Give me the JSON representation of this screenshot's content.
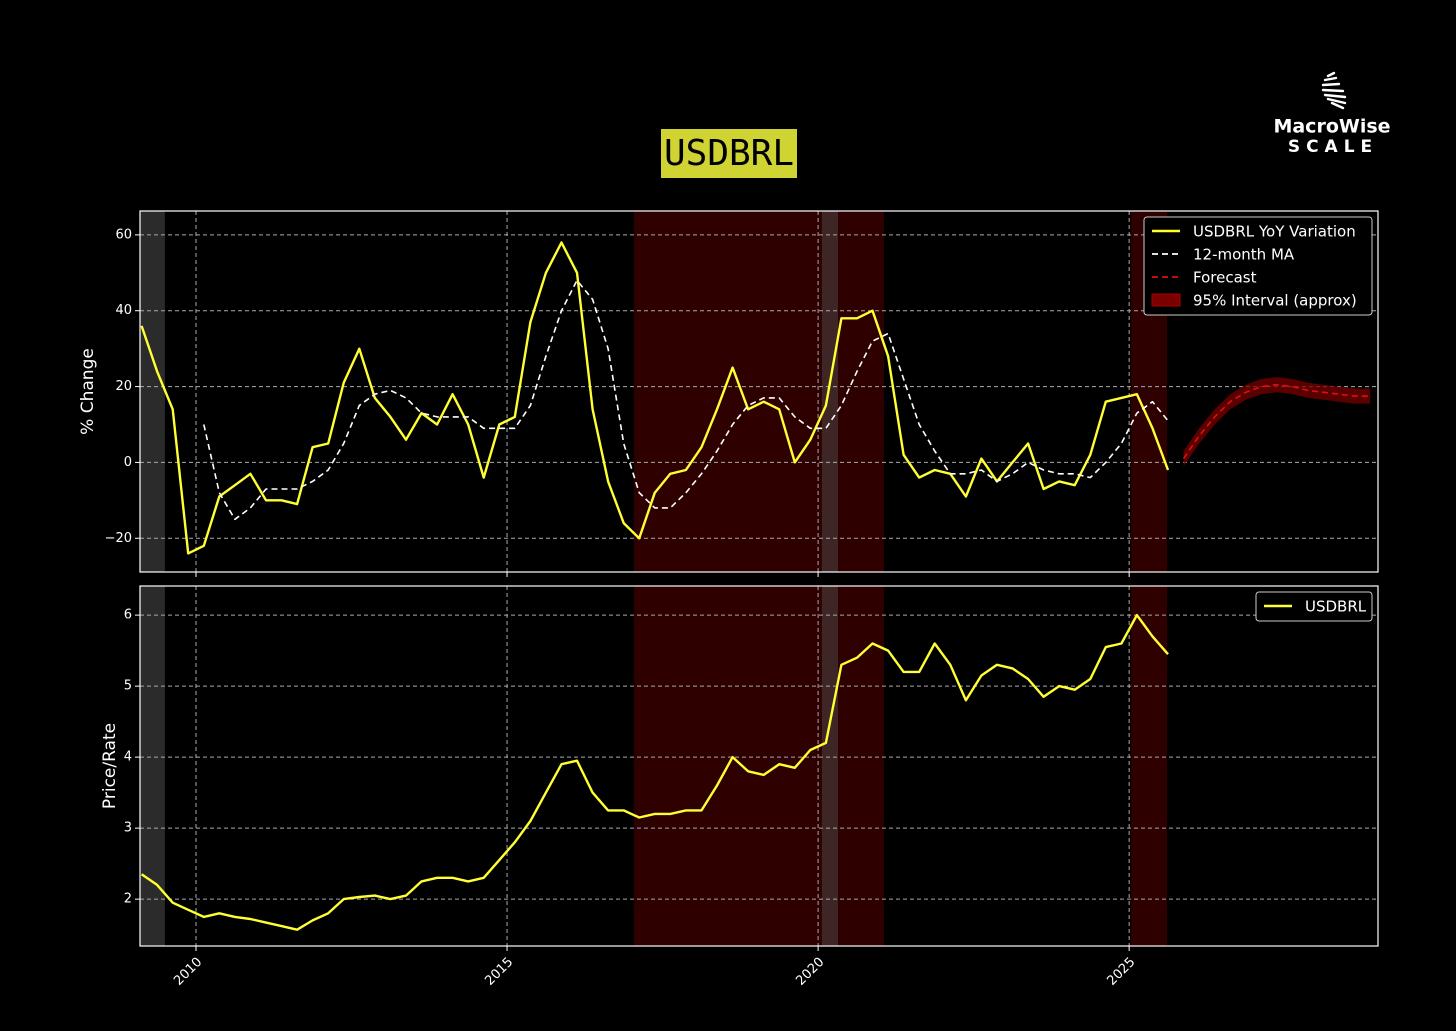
{
  "title": "USDBRL",
  "logo": {
    "name": "MacroWise",
    "tagline": "SCALE"
  },
  "chart_data": [
    {
      "type": "line",
      "ylabel": "% Change",
      "x": [
        2009.125,
        2009.375,
        2009.625,
        2009.875,
        2010.125,
        2010.375,
        2010.625,
        2010.875,
        2011.125,
        2011.375,
        2011.625,
        2011.875,
        2012.125,
        2012.375,
        2012.625,
        2012.875,
        2013.125,
        2013.375,
        2013.625,
        2013.875,
        2014.125,
        2014.375,
        2014.625,
        2014.875,
        2015.125,
        2015.375,
        2015.625,
        2015.875,
        2016.125,
        2016.375,
        2016.625,
        2016.875,
        2017.125,
        2017.375,
        2017.625,
        2017.875,
        2018.125,
        2018.375,
        2018.625,
        2018.875,
        2019.125,
        2019.375,
        2019.625,
        2019.875,
        2020.125,
        2020.375,
        2020.625,
        2020.875,
        2021.125,
        2021.375,
        2021.625,
        2021.875,
        2022.125,
        2022.375,
        2022.625,
        2022.875,
        2023.125,
        2023.375,
        2023.625,
        2023.875,
        2024.125,
        2024.375,
        2024.625,
        2024.875,
        2025.125,
        2025.375,
        2025.625,
        2025.875,
        2026.125,
        2026.375,
        2026.625,
        2026.875,
        2027.125,
        2027.375,
        2027.625,
        2027.875,
        2028.125,
        2028.375,
        2028.625,
        2028.875
      ],
      "series": [
        {
          "name": "USDBRL YoY Variation",
          "color": "#ffff33",
          "dash": "solid",
          "values": [
            36,
            24,
            14,
            -24,
            -22,
            -9,
            -6,
            -3,
            -10,
            -10,
            -11,
            4,
            5,
            21,
            30,
            17,
            12,
            6,
            13,
            10,
            18,
            10,
            -4,
            10,
            12,
            37,
            50,
            58,
            50,
            14,
            -5,
            -16,
            -20,
            -8,
            -3,
            -2,
            4,
            14,
            25,
            14,
            16,
            14,
            0,
            6,
            15,
            38,
            38,
            40,
            28,
            2,
            -4,
            -2,
            -3,
            -9,
            1,
            -5,
            0,
            5,
            -7,
            -5,
            -6,
            2,
            16,
            17,
            18,
            9,
            -2,
            null,
            null,
            null,
            null,
            null,
            null,
            null,
            null,
            null,
            null,
            null,
            null,
            null
          ]
        },
        {
          "name": "12-month MA",
          "color": "#ffffff",
          "dash": "dashed",
          "values": [
            null,
            null,
            null,
            null,
            10,
            -8,
            -15,
            -12,
            -7,
            -7,
            -7,
            -5,
            -2,
            5,
            15,
            18,
            19,
            17,
            13,
            12,
            12,
            12,
            9,
            9,
            9,
            15,
            28,
            40,
            48,
            43,
            30,
            5,
            -8,
            -12,
            -12,
            -8,
            -3,
            3,
            10,
            15,
            17,
            17,
            12,
            9,
            9,
            15,
            24,
            32,
            34,
            22,
            10,
            3,
            -3,
            -3,
            -2,
            -5,
            -3,
            0,
            -2,
            -3,
            -3,
            -4,
            0,
            5,
            13,
            16,
            11,
            null,
            null,
            null,
            null,
            null,
            null,
            null,
            null,
            null,
            null,
            null,
            null,
            null
          ]
        },
        {
          "name": "Forecast",
          "color": "#e01010",
          "dash": "dashed",
          "values": [
            null,
            null,
            null,
            null,
            null,
            null,
            null,
            null,
            null,
            null,
            null,
            null,
            null,
            null,
            null,
            null,
            null,
            null,
            null,
            null,
            null,
            null,
            null,
            null,
            null,
            null,
            null,
            null,
            null,
            null,
            null,
            null,
            null,
            null,
            null,
            null,
            null,
            null,
            null,
            null,
            null,
            null,
            null,
            null,
            null,
            null,
            null,
            null,
            null,
            null,
            null,
            null,
            null,
            null,
            null,
            null,
            null,
            null,
            null,
            null,
            null,
            null,
            null,
            null,
            null,
            null,
            null,
            1,
            7,
            12,
            16,
            18.5,
            20,
            20.5,
            20,
            19,
            18.5,
            18,
            17.5,
            17.5
          ]
        }
      ],
      "band": {
        "name": "95% Interval (approx)",
        "color": "#7a0000",
        "lower": [
          null,
          null,
          null,
          null,
          null,
          null,
          null,
          null,
          null,
          null,
          null,
          null,
          null,
          null,
          null,
          null,
          null,
          null,
          null,
          null,
          null,
          null,
          null,
          null,
          null,
          null,
          null,
          null,
          null,
          null,
          null,
          null,
          null,
          null,
          null,
          null,
          null,
          null,
          null,
          null,
          null,
          null,
          null,
          null,
          null,
          null,
          null,
          null,
          null,
          null,
          null,
          null,
          null,
          null,
          null,
          null,
          null,
          null,
          null,
          null,
          null,
          null,
          null,
          null,
          null,
          null,
          null,
          -1,
          5,
          10,
          14,
          16.5,
          18,
          18.5,
          18,
          17,
          16.5,
          16,
          15.5,
          15.5
        ],
        "upper": [
          null,
          null,
          null,
          null,
          null,
          null,
          null,
          null,
          null,
          null,
          null,
          null,
          null,
          null,
          null,
          null,
          null,
          null,
          null,
          null,
          null,
          null,
          null,
          null,
          null,
          null,
          null,
          null,
          null,
          null,
          null,
          null,
          null,
          null,
          null,
          null,
          null,
          null,
          null,
          null,
          null,
          null,
          null,
          null,
          null,
          null,
          null,
          null,
          null,
          null,
          null,
          null,
          null,
          null,
          null,
          null,
          null,
          null,
          null,
          null,
          null,
          null,
          null,
          null,
          null,
          null,
          null,
          3,
          9,
          14,
          18,
          20.5,
          22,
          22.5,
          22,
          21,
          20.5,
          20,
          19.5,
          19.5
        ]
      },
      "shaded_regions": [
        {
          "x": [
            2009.1,
            2009.5
          ],
          "color": "#2b2b2b"
        },
        {
          "x": [
            2017.04,
            2021.06
          ],
          "color": "#2e0000"
        },
        {
          "x": [
            2020.06,
            2020.32
          ],
          "color": "#3f2626"
        },
        {
          "x": [
            2025.03,
            2025.61
          ],
          "color": "#2e0000"
        }
      ],
      "xlim": [
        2009.1,
        2029.0
      ],
      "xticks": [
        2010,
        2015,
        2020,
        2025
      ],
      "ylim": [
        -28.9,
        66.3
      ],
      "yticks": [
        {
          "value": -20,
          "label": "−20"
        },
        0,
        20,
        40,
        60
      ],
      "grid": true,
      "legend": "upper right"
    },
    {
      "type": "line",
      "ylabel": "Price/Rate",
      "x": [
        2009.125,
        2009.375,
        2009.625,
        2009.875,
        2010.125,
        2010.375,
        2010.625,
        2010.875,
        2011.125,
        2011.375,
        2011.625,
        2011.875,
        2012.125,
        2012.375,
        2012.625,
        2012.875,
        2013.125,
        2013.375,
        2013.625,
        2013.875,
        2014.125,
        2014.375,
        2014.625,
        2014.875,
        2015.125,
        2015.375,
        2015.625,
        2015.875,
        2016.125,
        2016.375,
        2016.625,
        2016.875,
        2017.125,
        2017.375,
        2017.625,
        2017.875,
        2018.125,
        2018.375,
        2018.625,
        2018.875,
        2019.125,
        2019.375,
        2019.625,
        2019.875,
        2020.125,
        2020.375,
        2020.625,
        2020.875,
        2021.125,
        2021.375,
        2021.625,
        2021.875,
        2022.125,
        2022.375,
        2022.625,
        2022.875,
        2023.125,
        2023.375,
        2023.625,
        2023.875,
        2024.125,
        2024.375,
        2024.625,
        2024.875,
        2025.125,
        2025.375,
        2025.625
      ],
      "series": [
        {
          "name": "USDBRL",
          "color": "#ffff33",
          "dash": "solid",
          "values": [
            2.35,
            2.2,
            1.95,
            1.85,
            1.75,
            1.8,
            1.75,
            1.72,
            1.67,
            1.62,
            1.57,
            1.7,
            1.8,
            2.0,
            2.03,
            2.05,
            2.0,
            2.05,
            2.25,
            2.3,
            2.3,
            2.25,
            2.3,
            2.55,
            2.8,
            3.1,
            3.5,
            3.9,
            3.95,
            3.5,
            3.25,
            3.25,
            3.15,
            3.2,
            3.2,
            3.25,
            3.25,
            3.6,
            4.0,
            3.8,
            3.75,
            3.9,
            3.85,
            4.1,
            4.2,
            5.3,
            5.4,
            5.6,
            5.5,
            5.2,
            5.2,
            5.6,
            5.3,
            4.8,
            5.15,
            5.3,
            5.25,
            5.1,
            4.85,
            5.0,
            4.95,
            5.1,
            5.55,
            5.6,
            6.0,
            5.7,
            5.45
          ]
        }
      ],
      "shaded_regions": [
        {
          "x": [
            2009.1,
            2009.5
          ],
          "color": "#2b2b2b"
        },
        {
          "x": [
            2017.04,
            2021.06
          ],
          "color": "#2e0000"
        },
        {
          "x": [
            2020.06,
            2020.32
          ],
          "color": "#3f2626"
        },
        {
          "x": [
            2025.03,
            2025.61
          ],
          "color": "#2e0000"
        }
      ],
      "xlim": [
        2009.1,
        2029.0
      ],
      "xticks": [
        2010,
        2015,
        2020,
        2025
      ],
      "ylim": [
        1.34,
        6.41
      ],
      "yticks": [
        2,
        3,
        4,
        5,
        6
      ],
      "grid": true,
      "legend": "upper right"
    }
  ]
}
